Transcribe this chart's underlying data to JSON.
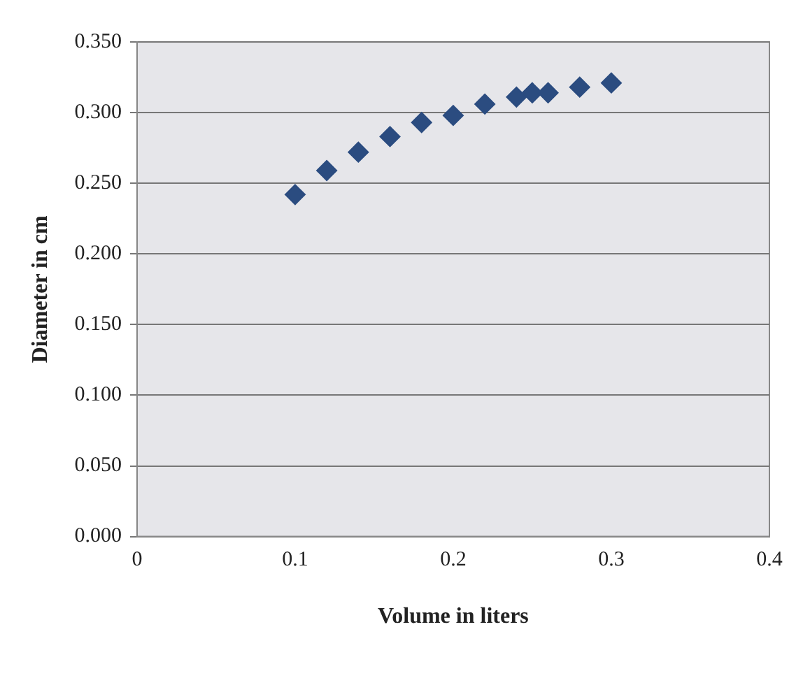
{
  "chart_data": {
    "type": "scatter",
    "xlabel": "Volume in liters",
    "ylabel": "Diameter in cm",
    "x": [
      0.1,
      0.12,
      0.14,
      0.16,
      0.18,
      0.2,
      0.22,
      0.24,
      0.25,
      0.26,
      0.28,
      0.3
    ],
    "series": [
      {
        "color": "#2b4c80",
        "values": [
          0.242,
          0.259,
          0.272,
          0.283,
          0.293,
          0.298,
          0.306,
          0.311,
          0.314,
          0.314,
          0.318,
          0.321
        ]
      }
    ],
    "xlim": [
      0,
      0.4
    ],
    "xticks": [
      0,
      0.1,
      0.2,
      0.3,
      0.4
    ],
    "ylim": [
      0,
      0.35
    ],
    "yticks": [
      {
        "value": 0,
        "label": "0.000"
      },
      {
        "value": 0.05,
        "label": "0.050"
      },
      {
        "value": 0.1,
        "label": "0.100"
      },
      {
        "value": 0.15,
        "label": "0.150"
      },
      {
        "value": 0.2,
        "label": "0.200"
      },
      {
        "value": 0.25,
        "label": "0.250"
      },
      {
        "value": 0.3,
        "label": "0.300"
      },
      {
        "value": 0.35,
        "label": "0.350"
      }
    ],
    "grid": "y",
    "legend": false,
    "marker": "diamond"
  }
}
